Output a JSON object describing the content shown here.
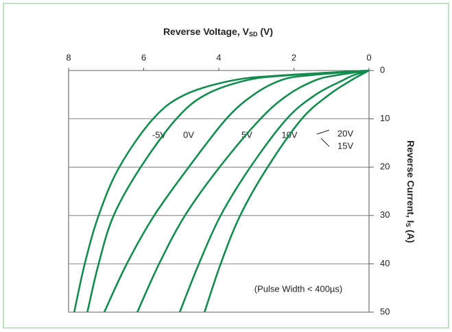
{
  "chart_data": {
    "type": "line",
    "x_label": [
      "Reverse Voltage, V",
      "SD",
      " (V)"
    ],
    "y_label": [
      "Reverse Current, I",
      "S",
      " (A)"
    ],
    "annotation": "(Pulse Width < 400µs)",
    "xlim": [
      8,
      0
    ],
    "xticks": [
      8,
      6,
      4,
      2,
      0
    ],
    "ylim": [
      0,
      50
    ],
    "yticks": [
      0,
      10,
      20,
      30,
      40,
      50
    ],
    "grid": true,
    "series": [
      {
        "name": "-5V",
        "color": "#138a4e",
        "x": [
          0,
          2.3,
          3.6,
          4.9,
          5.75,
          6.65,
          7.2,
          7.57,
          7.85
        ],
        "values": [
          0,
          1,
          2,
          5,
          10,
          20,
          30,
          40,
          50
        ]
      },
      {
        "name": "0V",
        "color": "#138a4e",
        "x": [
          0,
          2.15,
          3.25,
          4.35,
          5.13,
          6.08,
          6.8,
          7.2,
          7.5
        ],
        "values": [
          0,
          1,
          2,
          5,
          10,
          20,
          30,
          40,
          50
        ]
      },
      {
        "name": "5V",
        "color": "#138a4e",
        "x": [
          0,
          1.6,
          2.34,
          3.07,
          3.8,
          4.8,
          5.72,
          6.45,
          7.05
        ],
        "values": [
          0,
          1,
          2,
          5,
          10,
          20,
          30,
          40,
          50
        ]
      },
      {
        "name": "10V",
        "color": "#138a4e",
        "x": [
          0,
          0.88,
          1.42,
          2.15,
          2.89,
          3.98,
          4.9,
          5.59,
          6.17
        ],
        "values": [
          0,
          1,
          2,
          5,
          10,
          20,
          30,
          40,
          50
        ]
      },
      {
        "name": "15V",
        "color": "#138a4e",
        "x": [
          0,
          0.42,
          0.69,
          1.42,
          2.19,
          3.16,
          3.95,
          4.53,
          5.04
        ],
        "values": [
          0,
          1,
          2,
          5,
          10,
          20,
          30,
          40,
          50
        ]
      },
      {
        "name": "20V",
        "color": "#138a4e",
        "x": [
          0,
          0.24,
          0.47,
          1.06,
          1.79,
          2.7,
          3.43,
          3.95,
          4.38
        ],
        "values": [
          0,
          1,
          2,
          5,
          10,
          20,
          30,
          40,
          50
        ]
      }
    ]
  }
}
